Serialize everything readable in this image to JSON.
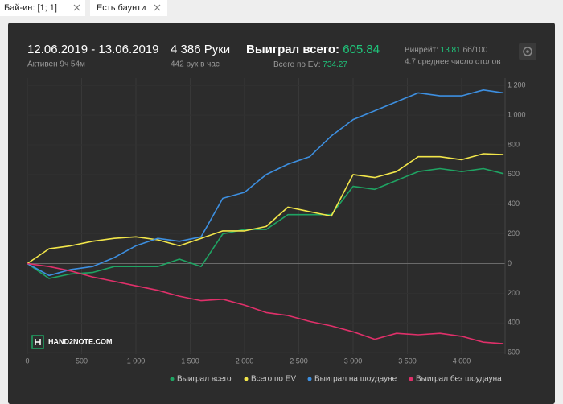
{
  "filters": [
    "Бай-ин: [1; 1]",
    "Есть баунти"
  ],
  "summary": {
    "period": "12.06.2019 - 13.06.2019",
    "active": "Активен 9ч 54м",
    "hands": "4 386 Руки",
    "hands_per_hour": "442 рук в час",
    "won_label": "Выиграл всего:",
    "won_value": "605.84",
    "ev_label": "Всего по EV:",
    "ev_value": "734.27",
    "winrate_label": "Винрейт:",
    "winrate_value": "13.81",
    "winrate_unit": "бб/100",
    "tables": "4.7 среднее число столов"
  },
  "brand": "HAND2NOTE.COM",
  "chart_data": {
    "type": "line",
    "x": [
      0,
      200,
      400,
      600,
      800,
      1000,
      1200,
      1400,
      1600,
      1800,
      2000,
      2200,
      2400,
      2600,
      2800,
      3000,
      3200,
      3400,
      3600,
      3800,
      4000,
      4200,
      4386
    ],
    "series": [
      {
        "name": "Выиграл всего",
        "color": "#1fa463",
        "values": [
          0,
          -100,
          -70,
          -60,
          -20,
          -20,
          -20,
          30,
          -20,
          200,
          230,
          230,
          330,
          330,
          330,
          520,
          500,
          560,
          620,
          640,
          620,
          640,
          605.84
        ]
      },
      {
        "name": "Всего по EV",
        "color": "#f2e64a",
        "values": [
          0,
          100,
          120,
          150,
          170,
          180,
          160,
          120,
          170,
          220,
          220,
          250,
          380,
          350,
          320,
          600,
          580,
          620,
          720,
          720,
          700,
          740,
          734.27
        ]
      },
      {
        "name": "Выиграл на шоудауне",
        "color": "#3d8fe0",
        "values": [
          0,
          -80,
          -40,
          -20,
          40,
          120,
          170,
          150,
          180,
          440,
          480,
          600,
          670,
          720,
          860,
          970,
          1030,
          1090,
          1150,
          1130,
          1130,
          1170,
          1150
        ]
      },
      {
        "name": "Выиграл без шоудауна",
        "color": "#e0306a",
        "values": [
          0,
          -20,
          -50,
          -90,
          -120,
          -150,
          -180,
          -220,
          -250,
          -240,
          -280,
          -330,
          -350,
          -390,
          -420,
          -460,
          -510,
          -470,
          -480,
          -470,
          -490,
          -530,
          -540
        ]
      }
    ],
    "xlim": [
      0,
      4400
    ],
    "xticks": [
      0,
      500,
      {
        "value": 1000,
        "label": "1 000"
      },
      {
        "value": 1500,
        "label": "1 500"
      },
      {
        "value": 2000,
        "label": "2 000"
      },
      {
        "value": 2500,
        "label": "2 500"
      },
      {
        "value": 3000,
        "label": "3 000"
      },
      {
        "value": 3500,
        "label": "3 500"
      },
      {
        "value": 4000,
        "label": "4 000"
      }
    ],
    "ylim": [
      -610,
      1250
    ],
    "yticks": [
      {
        "value": 1200,
        "label": "1 200"
      },
      {
        "value": 1000,
        "label": "1 000"
      },
      800,
      600,
      400,
      200,
      0,
      {
        "value": -200,
        "label": "200"
      },
      {
        "value": -400,
        "label": "400"
      },
      {
        "value": -600,
        "label": "600"
      }
    ],
    "grid": true,
    "legend": "bottom"
  }
}
